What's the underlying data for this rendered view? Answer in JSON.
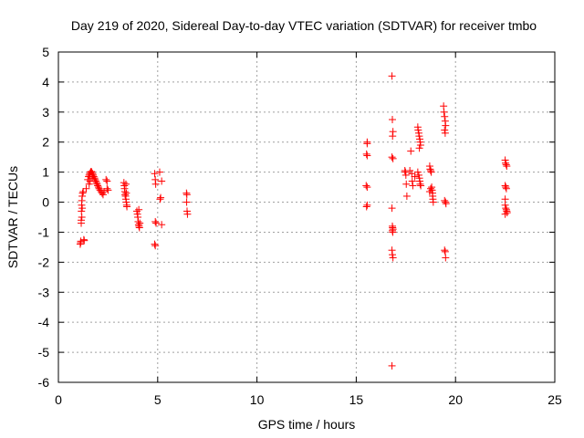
{
  "chart_data": {
    "type": "scatter",
    "title": "Day 219 of 2020, Sidereal Day-to-day VTEC variation (SDTVAR) for receiver tmbo",
    "xlabel": "GPS time / hours",
    "ylabel": "SDTVAR / TECUs",
    "xlim": [
      0,
      25
    ],
    "ylim": [
      -6,
      5
    ],
    "xticks": [
      0,
      5,
      10,
      15,
      20,
      25
    ],
    "yticks": [
      -6,
      -5,
      -4,
      -3,
      -2,
      -1,
      0,
      1,
      2,
      3,
      4,
      5
    ],
    "grid": true,
    "marker": "plus",
    "series": [
      {
        "name": "SDTVAR",
        "color": "#ff0000",
        "points": [
          [
            1.1,
            -1.4
          ],
          [
            1.12,
            -1.35
          ],
          [
            1.13,
            -1.3
          ],
          [
            1.15,
            -0.7
          ],
          [
            1.15,
            -0.6
          ],
          [
            1.16,
            -0.3
          ],
          [
            1.17,
            -0.1
          ],
          [
            1.18,
            0.05
          ],
          [
            1.2,
            0.2
          ],
          [
            1.22,
            0.3
          ],
          [
            1.25,
            0.35
          ],
          [
            1.28,
            -1.25
          ],
          [
            1.3,
            -1.28
          ],
          [
            1.18,
            -0.5
          ],
          [
            1.2,
            -0.2
          ],
          [
            1.4,
            0.45
          ],
          [
            1.48,
            0.75
          ],
          [
            1.52,
            0.85
          ],
          [
            1.55,
            0.9
          ],
          [
            1.58,
            0.95
          ],
          [
            1.62,
            1.0
          ],
          [
            1.65,
            1.02
          ],
          [
            1.68,
            1.0
          ],
          [
            1.72,
            0.95
          ],
          [
            1.75,
            0.9
          ],
          [
            1.78,
            0.85
          ],
          [
            1.82,
            0.8
          ],
          [
            1.85,
            0.75
          ],
          [
            1.88,
            0.7
          ],
          [
            1.92,
            0.65
          ],
          [
            1.95,
            0.6
          ],
          [
            1.98,
            0.55
          ],
          [
            2.02,
            0.5
          ],
          [
            2.05,
            0.45
          ],
          [
            2.1,
            0.4
          ],
          [
            2.15,
            0.35
          ],
          [
            2.2,
            0.3
          ],
          [
            2.25,
            0.25
          ],
          [
            2.3,
            0.35
          ],
          [
            1.55,
            0.6
          ],
          [
            1.6,
            0.7
          ],
          [
            1.7,
            0.8
          ],
          [
            2.4,
            0.75
          ],
          [
            2.45,
            0.7
          ],
          [
            2.45,
            0.45
          ],
          [
            2.5,
            0.4
          ],
          [
            3.3,
            0.65
          ],
          [
            3.32,
            0.55
          ],
          [
            3.33,
            0.45
          ],
          [
            3.35,
            0.35
          ],
          [
            3.36,
            0.25
          ],
          [
            3.38,
            0.2
          ],
          [
            3.4,
            0.1
          ],
          [
            3.42,
            0.0
          ],
          [
            3.44,
            -0.1
          ],
          [
            3.45,
            -0.15
          ],
          [
            3.4,
            0.6
          ],
          [
            3.42,
            0.3
          ],
          [
            3.95,
            -0.3
          ],
          [
            3.98,
            -0.4
          ],
          [
            4.0,
            -0.5
          ],
          [
            4.02,
            -0.65
          ],
          [
            4.04,
            -0.75
          ],
          [
            4.06,
            -0.8
          ],
          [
            4.08,
            -0.85
          ],
          [
            4.1,
            -0.7
          ],
          [
            4.05,
            -0.25
          ],
          [
            4.85,
            0.95
          ],
          [
            4.88,
            0.75
          ],
          [
            4.9,
            0.6
          ],
          [
            4.92,
            -0.7
          ],
          [
            4.88,
            -0.65
          ],
          [
            4.85,
            -1.4
          ],
          [
            4.88,
            -1.45
          ],
          [
            5.1,
            1.0
          ],
          [
            5.15,
            0.15
          ],
          [
            5.12,
            0.1
          ],
          [
            5.2,
            0.7
          ],
          [
            5.2,
            -0.75
          ],
          [
            6.45,
            0.3
          ],
          [
            6.46,
            0.0
          ],
          [
            6.48,
            -0.3
          ],
          [
            6.5,
            -0.4
          ],
          [
            6.47,
            0.25
          ],
          [
            15.55,
            2.0
          ],
          [
            15.55,
            1.95
          ],
          [
            15.52,
            1.6
          ],
          [
            15.55,
            1.55
          ],
          [
            15.5,
            0.55
          ],
          [
            15.55,
            0.5
          ],
          [
            15.55,
            -0.1
          ],
          [
            15.52,
            -0.15
          ],
          [
            16.8,
            4.2
          ],
          [
            16.82,
            2.75
          ],
          [
            16.85,
            2.35
          ],
          [
            16.83,
            2.2
          ],
          [
            16.8,
            1.5
          ],
          [
            16.85,
            1.45
          ],
          [
            16.8,
            -0.2
          ],
          [
            16.82,
            -0.8
          ],
          [
            16.83,
            -0.85
          ],
          [
            16.85,
            -0.9
          ],
          [
            16.82,
            -0.95
          ],
          [
            16.84,
            -1.0
          ],
          [
            16.8,
            -1.6
          ],
          [
            16.82,
            -1.75
          ],
          [
            16.85,
            -1.85
          ],
          [
            16.8,
            -5.45
          ],
          [
            17.45,
            1.05
          ],
          [
            17.48,
            1.0
          ],
          [
            17.5,
            0.9
          ],
          [
            17.52,
            0.6
          ],
          [
            17.55,
            0.2
          ],
          [
            17.7,
            1.05
          ],
          [
            17.75,
            1.7
          ],
          [
            17.8,
            0.95
          ],
          [
            17.82,
            0.7
          ],
          [
            17.85,
            0.55
          ],
          [
            17.95,
            0.85
          ],
          [
            18.1,
            2.5
          ],
          [
            18.12,
            2.4
          ],
          [
            18.15,
            2.3
          ],
          [
            18.17,
            2.2
          ],
          [
            18.2,
            2.1
          ],
          [
            18.22,
            2.0
          ],
          [
            18.24,
            1.9
          ],
          [
            18.18,
            1.8
          ],
          [
            18.15,
            0.9
          ],
          [
            18.18,
            0.8
          ],
          [
            18.2,
            0.7
          ],
          [
            18.22,
            0.6
          ],
          [
            18.25,
            0.55
          ],
          [
            18.1,
            1.0
          ],
          [
            18.7,
            1.2
          ],
          [
            18.72,
            1.1
          ],
          [
            18.75,
            1.05
          ],
          [
            18.78,
            1.0
          ],
          [
            18.8,
            0.5
          ],
          [
            18.82,
            0.4
          ],
          [
            18.84,
            0.3
          ],
          [
            18.85,
            0.2
          ],
          [
            18.86,
            0.1
          ],
          [
            18.88,
            0.0
          ],
          [
            18.75,
            0.45
          ],
          [
            18.7,
            0.35
          ],
          [
            19.4,
            3.2
          ],
          [
            19.42,
            3.0
          ],
          [
            19.45,
            2.85
          ],
          [
            19.48,
            2.7
          ],
          [
            19.5,
            2.55
          ],
          [
            19.45,
            2.4
          ],
          [
            19.48,
            2.3
          ],
          [
            19.45,
            0.05
          ],
          [
            19.5,
            0.0
          ],
          [
            19.52,
            -0.05
          ],
          [
            19.45,
            -1.6
          ],
          [
            19.48,
            -1.65
          ],
          [
            19.5,
            -1.85
          ],
          [
            22.5,
            1.4
          ],
          [
            22.52,
            1.3
          ],
          [
            22.55,
            1.25
          ],
          [
            22.58,
            1.2
          ],
          [
            22.5,
            0.55
          ],
          [
            22.53,
            0.5
          ],
          [
            22.56,
            0.45
          ],
          [
            22.5,
            0.1
          ],
          [
            22.5,
            -0.1
          ],
          [
            22.53,
            -0.2
          ],
          [
            22.56,
            -0.25
          ],
          [
            22.58,
            -0.3
          ],
          [
            22.6,
            -0.35
          ],
          [
            22.5,
            -0.4
          ]
        ]
      }
    ]
  }
}
